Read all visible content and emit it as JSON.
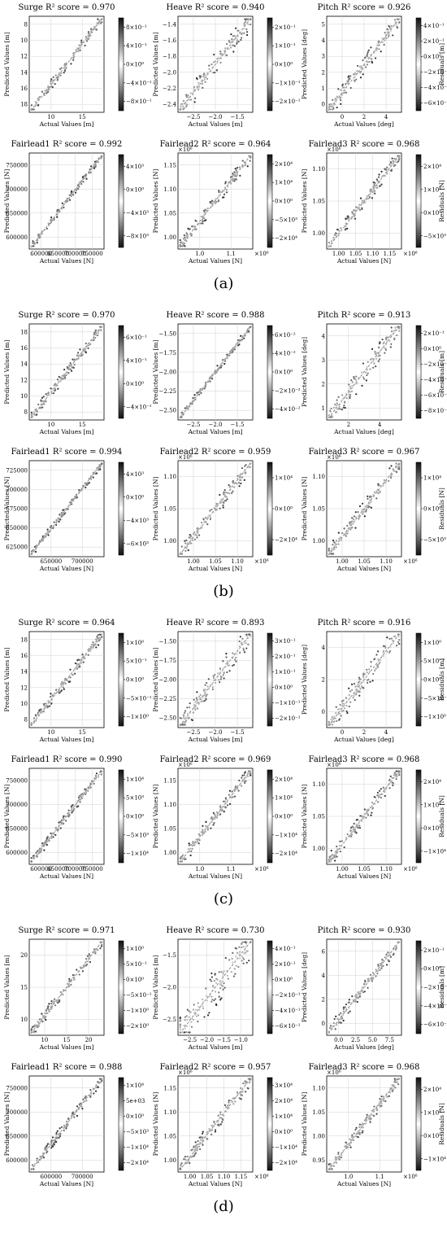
{
  "panels": [
    {
      "label": "(a)",
      "charts": [
        {
          "title": "Surge R² score = 0.970",
          "xlabel": "Actual Values [m]",
          "ylabel": "Predicted Values [m]",
          "xticks": [
            "10",
            "15"
          ],
          "yticks": [
            "8",
            "10",
            "12",
            "14",
            "16",
            "18"
          ],
          "xmult": "",
          "ymult": "",
          "cbar_label": "",
          "cbar_ticks": [
            "8×10⁻¹",
            "4×10⁻¹",
            "0×10⁰",
            "−4×10⁻¹",
            "−8×10⁻¹"
          ],
          "spread": 0.05
        },
        {
          "title": "Heave R² score = 0.940",
          "xlabel": "Actual Values [m]",
          "ylabel": "Predicted Values [m]",
          "xticks": [
            "−2.5",
            "−2.0",
            "−1.5"
          ],
          "yticks": [
            "−1.4",
            "−1.6",
            "−1.8",
            "−2.0",
            "−2.2",
            "−2.4"
          ],
          "xmult": "",
          "ymult": "",
          "cbar_label": "",
          "cbar_ticks": [
            "2×10⁻¹",
            "1×10⁻¹",
            "0×10⁰",
            "−1×10⁻¹",
            "−2×10⁻¹"
          ],
          "spread": 0.09
        },
        {
          "title": "Pitch R² score = 0.926",
          "xlabel": "Actual Values [deg]",
          "ylabel": "Predicted Values [deg]",
          "xticks": [
            "0",
            "2",
            "4"
          ],
          "yticks": [
            "5",
            "4",
            "3",
            "2",
            "1",
            "0"
          ],
          "xmult": "",
          "ymult": "",
          "cbar_label": "Residuals [m]",
          "cbar_ticks": [
            "4×10⁻¹",
            "2×10⁻¹",
            "0×10⁰",
            "−2×10⁻¹",
            "−4×10⁻¹",
            "−6×10⁻¹"
          ],
          "spread": 0.08
        },
        {
          "title": "Fairlead1 R² score = 0.992",
          "xlabel": "Actual Values [N]",
          "ylabel": "Predicted Values [N]",
          "xticks": [
            "600000",
            "650000",
            "700000",
            "750000"
          ],
          "yticks": [
            "750000",
            "700000",
            "650000",
            "600000"
          ],
          "xmult": "",
          "ymult": "",
          "cbar_label": "",
          "cbar_ticks": [
            "4×10³",
            "0×10⁰",
            "−4×10³",
            "−8×10³"
          ],
          "spread": 0.03
        },
        {
          "title": "Fairlead2 R² score = 0.964",
          "xlabel": "Actual Values [N]",
          "ylabel": "Predicted Values [N]",
          "xticks": [
            "1.0",
            "1.1"
          ],
          "yticks": [
            "1.15",
            "1.10",
            "1.05",
            "1.00"
          ],
          "xmult": "×10⁶",
          "ymult": "×10⁶",
          "cbar_label": "",
          "cbar_ticks": [
            "2×10⁴",
            "1×10⁴",
            "0×10⁰",
            "−5×10³",
            "−2×10⁴"
          ],
          "spread": 0.06
        },
        {
          "title": "Fairlead3 R² score = 0.968",
          "xlabel": "Actual Values [N]",
          "ylabel": "Predicted Values [N]",
          "xticks": [
            "1.00",
            "1.05",
            "1.10",
            "1.15"
          ],
          "yticks": [
            "1.10",
            "1.05",
            "1.00"
          ],
          "xmult": "×10⁶",
          "ymult": "×10⁶",
          "cbar_label": "Residuals [N]",
          "cbar_ticks": [
            "2×10⁴",
            "1×10⁴",
            "0×10⁰",
            "−5×10³"
          ],
          "spread": 0.06
        }
      ]
    },
    {
      "label": "(b)",
      "charts": [
        {
          "title": "Surge R² score = 0.970",
          "xlabel": "Actual Values [m]",
          "ylabel": "Predicted Values [m]",
          "xticks": [
            "10",
            "15"
          ],
          "yticks": [
            "18",
            "16",
            "14",
            "12",
            "10",
            "8"
          ],
          "xmult": "",
          "ymult": "",
          "cbar_label": "",
          "cbar_ticks": [
            "6×10⁻¹",
            "4×10⁻¹",
            "0×10⁰",
            "−4×10⁻¹"
          ],
          "spread": 0.05
        },
        {
          "title": "Heave R² score = 0.988",
          "xlabel": "Actual Values [m]",
          "ylabel": "Predicted Values [m]",
          "xticks": [
            "−2.5",
            "−2.0",
            "−1.5"
          ],
          "yticks": [
            "−1.50",
            "−1.75",
            "−2.00",
            "−2.25",
            "−2.50"
          ],
          "xmult": "",
          "ymult": "",
          "cbar_label": "",
          "cbar_ticks": [
            "6×10⁻²",
            "4×10⁻²",
            "0×10⁰",
            "−2×10⁻²",
            "−4×10⁻²"
          ],
          "spread": 0.03
        },
        {
          "title": "Pitch R² score = 0.913",
          "xlabel": "Actual Values [deg]",
          "ylabel": "Predicted Values [deg]",
          "xticks": [
            "2",
            "4"
          ],
          "yticks": [
            "4",
            "3",
            "2",
            "1"
          ],
          "xmult": "",
          "ymult": "",
          "cbar_label": "Residuals [m]",
          "cbar_ticks": [
            "2×10⁻¹",
            "0×10⁰",
            "−2×10⁻¹",
            "−4×10⁻¹",
            "−6×10⁻¹",
            "−8×10⁻¹"
          ],
          "spread": 0.1
        },
        {
          "title": "Fairlead1 R² score = 0.994",
          "xlabel": "Actual Values [N]",
          "ylabel": "Predicted Values [N]",
          "xticks": [
            "650000",
            "700000"
          ],
          "yticks": [
            "725000",
            "700000",
            "675000",
            "650000",
            "625000"
          ],
          "xmult": "",
          "ymult": "",
          "cbar_label": "",
          "cbar_ticks": [
            "4×10³",
            "0×10⁰",
            "−4×10³",
            "−6×10³"
          ],
          "spread": 0.03
        },
        {
          "title": "Fairlead2 R² score = 0.959",
          "xlabel": "Actual Values [N]",
          "ylabel": "Predicted Values [N]",
          "xticks": [
            "1.00",
            "1.05",
            "1.10"
          ],
          "yticks": [
            "1.10",
            "1.05",
            "1.00"
          ],
          "xmult": "×10⁶",
          "ymult": "×10⁶",
          "cbar_label": "",
          "cbar_ticks": [
            "1×10⁴",
            "0×10⁰",
            "−2×10⁴"
          ],
          "spread": 0.07
        },
        {
          "title": "Fairlead3 R² score = 0.967",
          "xlabel": "Actual Values [N]",
          "ylabel": "Predicted Values [N]",
          "xticks": [
            "1.00",
            "1.05",
            "1.10"
          ],
          "yticks": [
            "1.10",
            "1.05",
            "1.00"
          ],
          "xmult": "×10⁶",
          "ymult": "×10⁶",
          "cbar_label": "Residuals [N]",
          "cbar_ticks": [
            "1×10⁴",
            "0×10⁰",
            "−5×10³"
          ],
          "spread": 0.07
        }
      ]
    },
    {
      "label": "(c)",
      "charts": [
        {
          "title": "Surge R² score = 0.964",
          "xlabel": "Actual Values [m]",
          "ylabel": "Predicted Values [m]",
          "xticks": [
            "10",
            "15"
          ],
          "yticks": [
            "18",
            "16",
            "14",
            "12",
            "10",
            "8"
          ],
          "xmult": "",
          "ymult": "",
          "cbar_label": "",
          "cbar_ticks": [
            "1×10⁰",
            "5×10⁻¹",
            "0×10⁰",
            "−5×10⁻¹",
            "−1×10⁰"
          ],
          "spread": 0.05
        },
        {
          "title": "Heave R² score = 0.893",
          "xlabel": "Actual Values [m]",
          "ylabel": "Predicted Values [m]",
          "xticks": [
            "−2.5",
            "−2.0",
            "−1.5"
          ],
          "yticks": [
            "−1.50",
            "−1.75",
            "−2.00",
            "−2.25",
            "−2.50"
          ],
          "xmult": "",
          "ymult": "",
          "cbar_label": "",
          "cbar_ticks": [
            "3×10⁻¹",
            "2×10⁻¹",
            "1×10⁻¹",
            "0×10⁰",
            "−1×10⁻¹",
            "−2×10⁻¹"
          ],
          "spread": 0.1
        },
        {
          "title": "Pitch R² score = 0.916",
          "xlabel": "Actual Values [deg]",
          "ylabel": "Predicted Values [deg]",
          "xticks": [
            "0",
            "2",
            "4"
          ],
          "yticks": [
            "4",
            "2",
            "0"
          ],
          "xmult": "",
          "ymult": "",
          "cbar_label": "Residuals [m]",
          "cbar_ticks": [
            "1×10⁰",
            "5×10⁻¹",
            "0×10⁰",
            "−5×10⁻¹",
            "−1×10⁰"
          ],
          "spread": 0.1
        },
        {
          "title": "Fairlead1 R² score = 0.990",
          "xlabel": "Actual Values [N]",
          "ylabel": "Predicted Values [N]",
          "xticks": [
            "600000",
            "650000",
            "700000",
            "750000"
          ],
          "yticks": [
            "750000",
            "700000",
            "650000",
            "600000"
          ],
          "xmult": "",
          "ymult": "",
          "cbar_label": "",
          "cbar_ticks": [
            "1×10⁴",
            "5×10³",
            "0×10⁰",
            "−5×10³",
            "−1×10⁴"
          ],
          "spread": 0.04
        },
        {
          "title": "Fairlead2 R² score = 0.969",
          "xlabel": "Actual Values [N]",
          "ylabel": "Predicted Values [N]",
          "xticks": [
            "1.0",
            "1.1"
          ],
          "yticks": [
            "1.15",
            "1.10",
            "1.05",
            "1.00"
          ],
          "xmult": "×10⁶",
          "ymult": "×10⁶",
          "cbar_label": "",
          "cbar_ticks": [
            "2×10⁴",
            "1×10⁴",
            "0×10⁰",
            "−1×10⁴",
            "−2×10⁴"
          ],
          "spread": 0.06
        },
        {
          "title": "Fairlead3 R² score = 0.968",
          "xlabel": "Actual Values [N]",
          "ylabel": "Predicted Values [N]",
          "xticks": [
            "1.00",
            "1.05",
            "1.10"
          ],
          "yticks": [
            "1.10",
            "1.05",
            "1.00"
          ],
          "xmult": "×10⁶",
          "ymult": "×10⁶",
          "cbar_label": "Residuals [N]",
          "cbar_ticks": [
            "2×10⁴",
            "1×10⁴",
            "0×10⁰",
            "−1×10⁴"
          ],
          "spread": 0.06
        }
      ]
    },
    {
      "label": "(d)",
      "charts": [
        {
          "title": "Surge R² score = 0.971",
          "xlabel": "Actual Values [m]",
          "ylabel": "Predicted Values [m]",
          "xticks": [
            "10",
            "15",
            "20"
          ],
          "yticks": [
            "20",
            "15",
            "10"
          ],
          "xmult": "",
          "ymult": "",
          "cbar_label": "",
          "cbar_ticks": [
            "1×10⁰",
            "5×10⁻¹",
            "0×10⁰",
            "−5×10⁻¹",
            "−1×10⁰",
            "−2×10⁰"
          ],
          "spread": 0.05
        },
        {
          "title": "Heave R² score = 0.730",
          "xlabel": "Actual Values [m]",
          "ylabel": "Predicted Values [m]",
          "xticks": [
            "−2.5",
            "−2.0",
            "−1.5",
            "−1.0"
          ],
          "yticks": [
            "−1.5",
            "−2.0",
            "−2.5"
          ],
          "xmult": "",
          "ymult": "",
          "cbar_label": "",
          "cbar_ticks": [
            "4×10⁻¹",
            "2×10⁻¹",
            "0×10⁰",
            "−2×10⁻¹",
            "−4×10⁻¹",
            "−6×10⁻¹"
          ],
          "spread": 0.16
        },
        {
          "title": "Pitch R² score = 0.930",
          "xlabel": "Actual Values [deg]",
          "ylabel": "Predicted Values [deg]",
          "xticks": [
            "0.0",
            "2.5",
            "5.0",
            "7.5"
          ],
          "yticks": [
            "6",
            "4",
            "2",
            "0"
          ],
          "xmult": "",
          "ymult": "",
          "cbar_label": "Residuals [m]",
          "cbar_ticks": [
            "2×10⁻¹",
            "0×10⁰",
            "−2×10⁻¹",
            "−4×10⁻¹",
            "−6×10⁻¹"
          ],
          "spread": 0.06
        },
        {
          "title": "Fairlead1 R² score = 0.988",
          "xlabel": "Actual Values [N]",
          "ylabel": "Predicted Values [N]",
          "xticks": [
            "600000",
            "700000"
          ],
          "yticks": [
            "750000",
            "700000",
            "650000",
            "600000"
          ],
          "xmult": "",
          "ymult": "",
          "cbar_label": "",
          "cbar_ticks": [
            "1×10⁴",
            "5e+03",
            "0×10⁰",
            "−5×10³",
            "−1×10⁴",
            "−2×10⁴"
          ],
          "spread": 0.04
        },
        {
          "title": "Fairlead2 R² score = 0.957",
          "xlabel": "Actual Values [N]",
          "ylabel": "Predicted Values [N]",
          "xticks": [
            "1.00",
            "1.05",
            "1.10",
            "1.15"
          ],
          "yticks": [
            "1.15",
            "1.10",
            "1.05",
            "1.00"
          ],
          "xmult": "×10⁶",
          "ymult": "×10⁶",
          "cbar_label": "",
          "cbar_ticks": [
            "3×10⁴",
            "2×10⁴",
            "1×10⁴",
            "0×10⁰",
            "−1×10⁴",
            "−2×10⁴"
          ],
          "spread": 0.07
        },
        {
          "title": "Fairlead3 R² score = 0.968",
          "xlabel": "Actual Values [N]",
          "ylabel": "Predicted Values [N]",
          "xticks": [
            "1.0",
            "1.1"
          ],
          "yticks": [
            "1.10",
            "1.05",
            "1.00",
            "0.95"
          ],
          "xmult": "×10⁶",
          "ymult": "×10⁶",
          "cbar_label": "Residuals [N]",
          "cbar_ticks": [
            "2×10⁴",
            "1×10⁴",
            "0×10⁰",
            "−1×10⁴"
          ],
          "spread": 0.06
        }
      ]
    }
  ]
}
